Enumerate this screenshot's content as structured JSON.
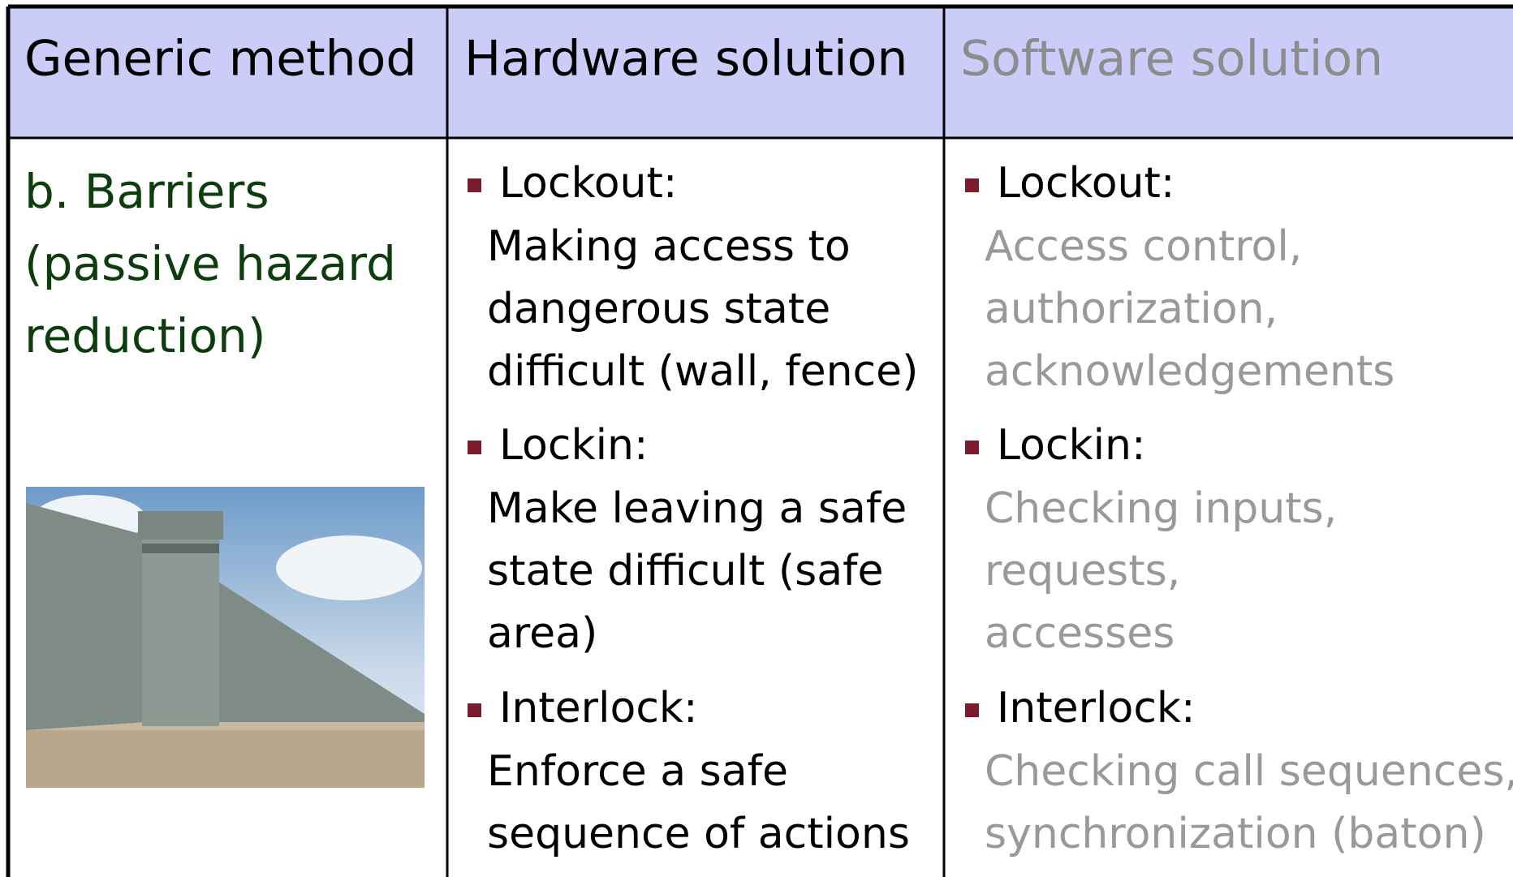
{
  "table": {
    "header": [
      "Generic method",
      "Hardware solution",
      "Software solution"
    ],
    "rows": [
      {
        "method": [
          "b. Barriers",
          "(passive hazard",
          "reduction)"
        ],
        "hardware": [
          {
            "title": "Lockout:",
            "lines": [
              "Making access to",
              "dangerous state",
              "difficult (wall, fence)"
            ]
          },
          {
            "title": "Lockin:",
            "lines": [
              "Make leaving a safe",
              "state difficult (safe",
              "area)"
            ]
          },
          {
            "title": "Interlock:",
            "lines": [
              "Enforce a safe",
              "sequence of actions"
            ]
          }
        ],
        "software": [
          {
            "title": "Lockout:",
            "lines": [
              "Access control,",
              "authorization,",
              "acknowledgements"
            ]
          },
          {
            "title": "Lockin:",
            "lines": [
              "Checking inputs,",
              "requests,",
              "accesses"
            ]
          },
          {
            "title": "Interlock:",
            "lines": [
              "Checking call sequences,",
              "synchronization (baton)"
            ]
          }
        ]
      }
    ]
  }
}
